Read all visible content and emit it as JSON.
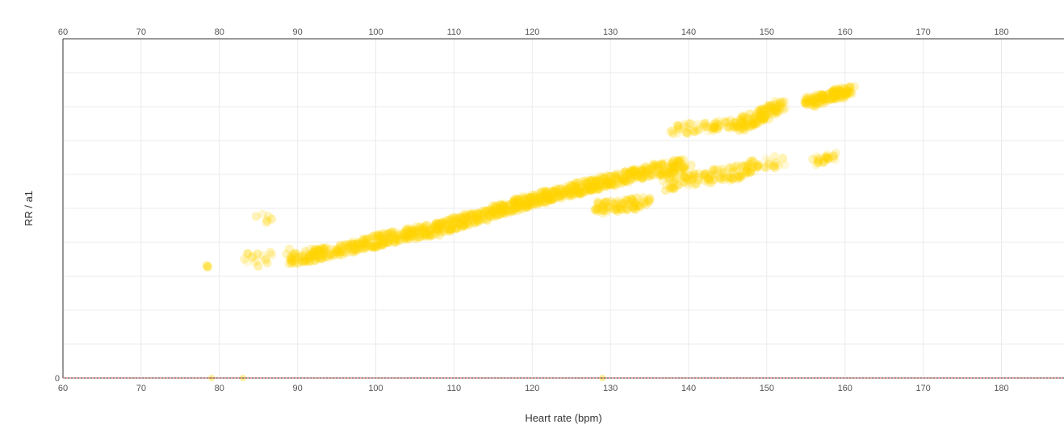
{
  "chart_data": {
    "type": "scatter",
    "title": "",
    "xlabel": "Heart rate (bpm)",
    "ylabel": "RR / a1",
    "xlim": [
      60,
      188
    ],
    "ylim": [
      0,
      1.0
    ],
    "x_ticks": [
      60,
      70,
      80,
      90,
      100,
      110,
      120,
      130,
      140,
      150,
      160,
      170,
      180
    ],
    "y_ticks": [
      0
    ],
    "y_tick_labels": [
      "0"
    ],
    "grid": true,
    "legend": "none",
    "point_color": "#ffd400",
    "baseline_color": "#d9534f",
    "series": [
      {
        "clusters": [
          {
            "x": [
              78,
              79
            ],
            "y": [
              0.34,
              0.33
            ],
            "n": 4,
            "jx": 0.4,
            "jy": 0.01
          },
          {
            "x": [
              83,
              89
            ],
            "y": [
              0.34,
              0.37
            ],
            "n": 18,
            "jx": 0.5,
            "jy": 0.025
          },
          {
            "x": [
              85,
              87
            ],
            "y": [
              0.47,
              0.48
            ],
            "n": 6,
            "jx": 0.5,
            "jy": 0.015
          },
          {
            "x": [
              89,
              96
            ],
            "y": [
              0.35,
              0.38
            ],
            "n": 120,
            "jx": 0.5,
            "jy": 0.018
          },
          {
            "x": [
              96,
              101
            ],
            "y": [
              0.38,
              0.41
            ],
            "n": 90,
            "jx": 0.5,
            "jy": 0.018
          },
          {
            "x": [
              101,
              108
            ],
            "y": [
              0.41,
              0.44
            ],
            "n": 140,
            "jx": 0.5,
            "jy": 0.018
          },
          {
            "x": [
              108,
              115
            ],
            "y": [
              0.44,
              0.49
            ],
            "n": 140,
            "jx": 0.5,
            "jy": 0.018
          },
          {
            "x": [
              115,
              121
            ],
            "y": [
              0.49,
              0.53
            ],
            "n": 140,
            "jx": 0.5,
            "jy": 0.018
          },
          {
            "x": [
              121,
              128
            ],
            "y": [
              0.53,
              0.57
            ],
            "n": 150,
            "jx": 0.5,
            "jy": 0.018
          },
          {
            "x": [
              128,
              135
            ],
            "y": [
              0.57,
              0.61
            ],
            "n": 140,
            "jx": 0.5,
            "jy": 0.018
          },
          {
            "x": [
              135,
              140
            ],
            "y": [
              0.61,
              0.63
            ],
            "n": 90,
            "jx": 0.5,
            "jy": 0.02
          },
          {
            "x": [
              128,
              135
            ],
            "y": [
              0.5,
              0.52
            ],
            "n": 90,
            "jx": 0.5,
            "jy": 0.018
          },
          {
            "x": [
              137,
              147
            ],
            "y": [
              0.57,
              0.61
            ],
            "n": 110,
            "jx": 0.5,
            "jy": 0.02
          },
          {
            "x": [
              147,
              152
            ],
            "y": [
              0.62,
              0.64
            ],
            "n": 40,
            "jx": 0.5,
            "jy": 0.018
          },
          {
            "x": [
              156,
              159
            ],
            "y": [
              0.64,
              0.65
            ],
            "n": 25,
            "jx": 0.5,
            "jy": 0.015
          },
          {
            "x": [
              138,
              146
            ],
            "y": [
              0.73,
              0.75
            ],
            "n": 60,
            "jx": 0.5,
            "jy": 0.015
          },
          {
            "x": [
              146,
              152
            ],
            "y": [
              0.74,
              0.8
            ],
            "n": 130,
            "jx": 0.5,
            "jy": 0.02
          },
          {
            "x": [
              155,
              161
            ],
            "y": [
              0.81,
              0.85
            ],
            "n": 140,
            "jx": 0.5,
            "jy": 0.015
          }
        ],
        "zero_points": [
          79,
          83,
          129
        ]
      }
    ]
  }
}
